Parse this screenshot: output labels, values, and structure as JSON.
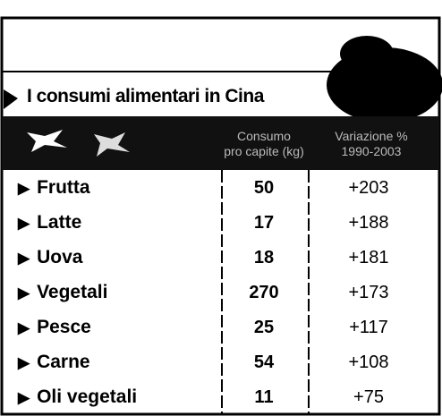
{
  "title": "I consumi alimentari in Cina",
  "table": {
    "header": [
      [
        "Consumo",
        "pro capite (kg)"
      ],
      [
        "Variazione %",
        "1990-2003"
      ]
    ],
    "rows": [
      [
        "Frutta",
        "50",
        "+203"
      ],
      [
        "Latte",
        "17",
        "+188"
      ],
      [
        "Uova",
        "18",
        "+181"
      ],
      [
        "Vegetali",
        "270",
        "+173"
      ],
      [
        "Pesce",
        "25",
        "+117"
      ],
      [
        "Carne",
        "54",
        "+108"
      ],
      [
        "Oli vegetali",
        "11",
        "+75"
      ]
    ]
  }
}
